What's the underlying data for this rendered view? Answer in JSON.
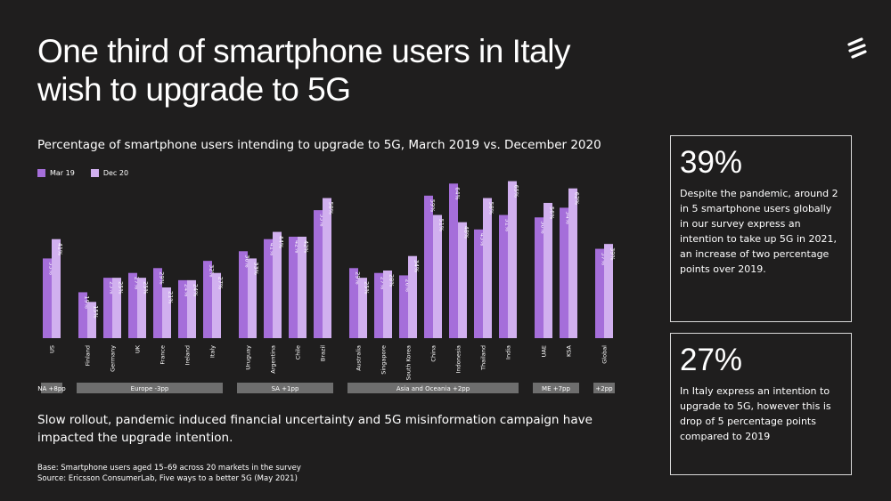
{
  "header": {
    "title_line1": "One third of smartphone users in Italy",
    "title_line2": "wish to upgrade to 5G",
    "logo_icon": "ericsson-logo-icon"
  },
  "takeaway": "Slow rollout, pandemic induced financial uncertainty and 5G misinformation campaign have impacted the upgrade intention.",
  "footnote": {
    "base": "Base: Smartphone users aged 15–69 across 20 markets in the survey",
    "source": "Source: Ericsson ConsumerLab, Five ways to a better 5G (May 2021)"
  },
  "cards": [
    {
      "value": "39%",
      "text": "Despite the pandemic, around 2 in 5 smartphone users globally in our survey express an intention to take up 5G in 2021, an increase of two percentage points over 2019."
    },
    {
      "value": "27%",
      "text": "In Italy express an intention to upgrade to 5G, however this is drop of 5 percentage points compared to 2019"
    }
  ],
  "chart_data": {
    "type": "bar",
    "title": "Percentage of smartphone users intending to upgrade to 5G, March 2019 vs. December 2020",
    "ylim": [
      0,
      70
    ],
    "grid": false,
    "legend_position": "top-left",
    "categories": [
      "US",
      "Finland",
      "Germany",
      "UK",
      "France",
      "Ireland",
      "Italy",
      "Uruguay",
      "Argentina",
      "Chile",
      "Brazil",
      "Australia",
      "Singapore",
      "South Korea",
      "China",
      "Indonesia",
      "Thailand",
      "India",
      "UAE",
      "KSA",
      "Global"
    ],
    "series": [
      {
        "name": "Mar 19",
        "color": "#a56eda",
        "values": [
          33,
          19,
          25,
          27,
          29,
          24,
          32,
          36,
          41,
          42,
          53,
          29,
          27,
          26,
          59,
          64,
          45,
          51,
          50,
          54,
          37
        ],
        "labels": [
          "33%",
          "19%",
          "25%",
          "27%",
          "29%",
          "24%",
          "32%",
          "36%",
          "41%",
          "42%",
          "53%",
          "29%",
          "27%",
          "26%",
          "59%",
          "64%",
          "45%",
          "51%",
          "50%",
          "54%",
          "37%"
        ]
      },
      {
        "name": "Dec 20",
        "color": "#d1b0ef",
        "values": [
          41,
          15,
          25,
          25,
          21,
          24,
          27,
          33,
          44,
          42,
          58,
          25,
          28,
          34,
          51,
          48,
          58,
          65,
          56,
          62,
          39
        ],
        "labels": [
          "41%",
          "15%",
          "25%",
          "25%",
          "21%",
          "24%",
          "27%",
          "33%",
          "44%",
          "42%",
          "58%",
          "25%",
          "28%",
          "34%",
          "51%",
          "48%",
          "58%",
          "65%",
          "56%",
          "62%",
          "39%"
        ]
      }
    ],
    "groups": [
      {
        "label": "NA +8pp",
        "start": 0,
        "end": 0
      },
      {
        "label": "Europe -3pp",
        "start": 1,
        "end": 6
      },
      {
        "label": "SA +1pp",
        "start": 7,
        "end": 10
      },
      {
        "label": "Asia and Oceania +2pp",
        "start": 11,
        "end": 17
      },
      {
        "label": "ME +7pp",
        "start": 18,
        "end": 19
      },
      {
        "label": "+2pp",
        "start": 20,
        "end": 20
      }
    ]
  }
}
